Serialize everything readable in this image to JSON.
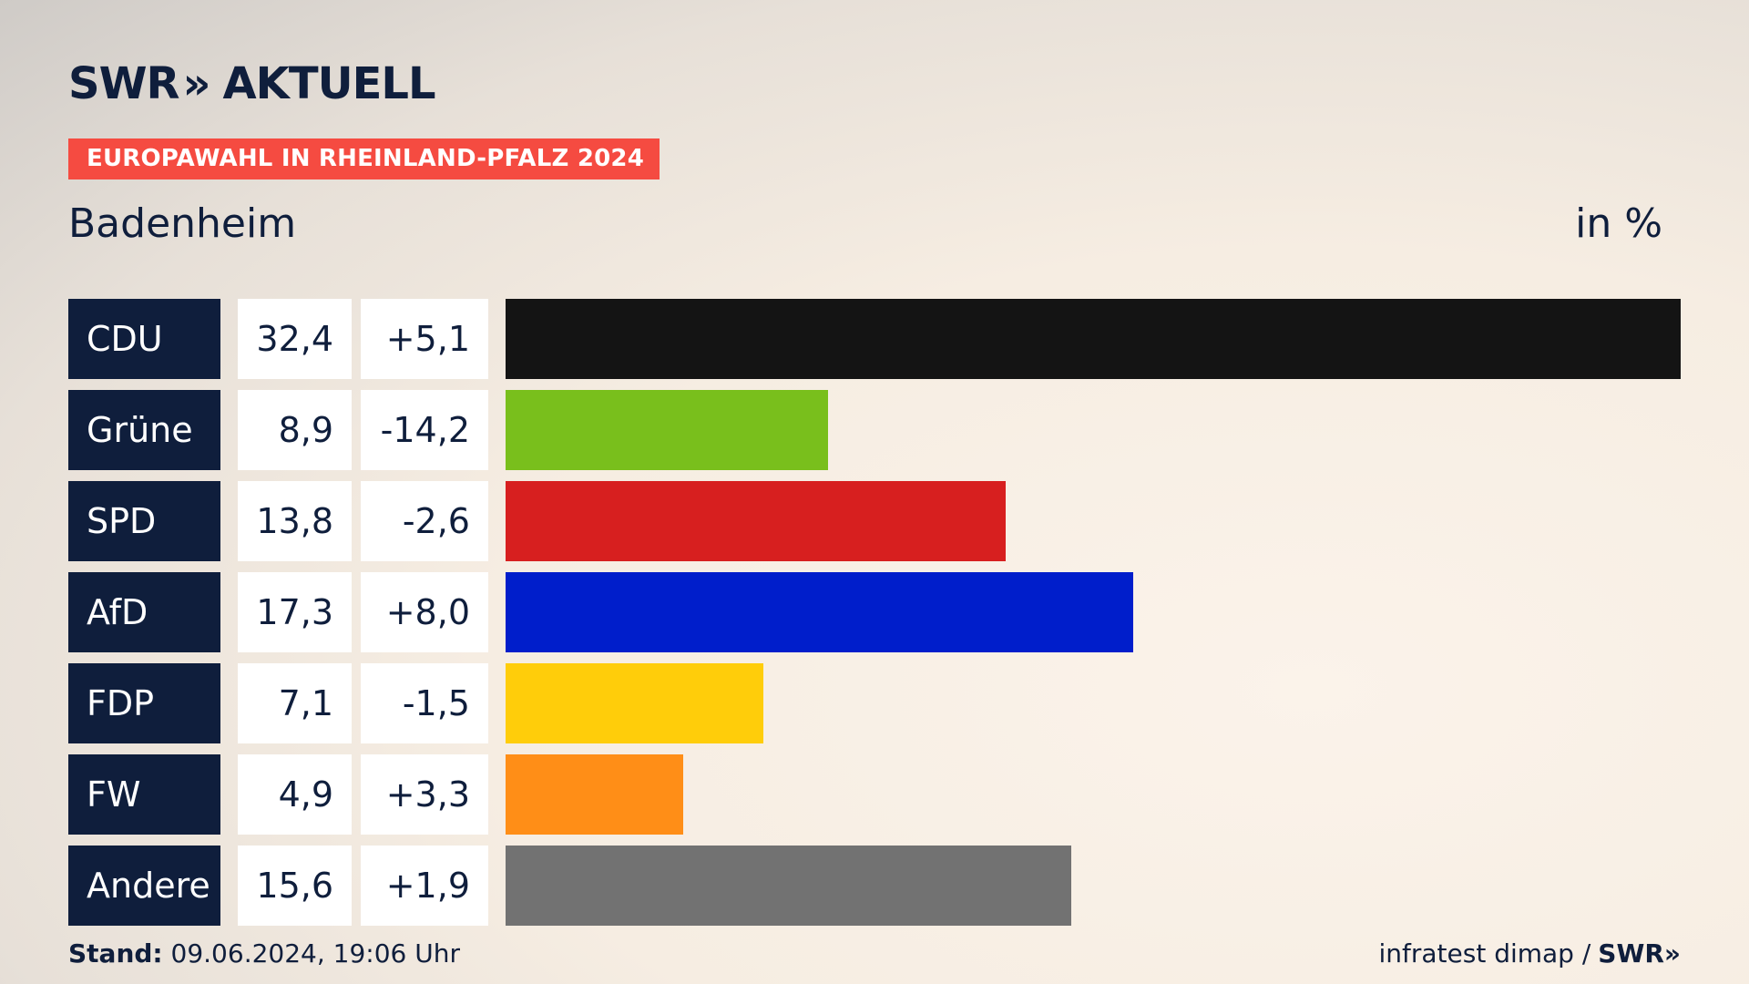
{
  "brand": {
    "logo_text": "SWR",
    "logo_chevrons": "»",
    "logo_suffix": "AKTUELL"
  },
  "event_banner": "EUROPAWAHL IN RHEINLAND-PFALZ 2024",
  "region": "Badenheim",
  "unit_label": "in %",
  "colors": {
    "navy": "#0f1e3c",
    "banner_red": "#f54b41"
  },
  "chart_data": {
    "type": "bar",
    "orientation": "horizontal",
    "categories": [
      "CDU",
      "Grüne",
      "SPD",
      "AfD",
      "FDP",
      "FW",
      "Andere"
    ],
    "values": [
      32.4,
      8.9,
      13.8,
      17.3,
      7.1,
      4.9,
      15.6
    ],
    "value_labels": [
      "32,4",
      "8,9",
      "13,8",
      "17,3",
      "7,1",
      "4,9",
      "15,6"
    ],
    "changes": [
      5.1,
      -14.2,
      -2.6,
      8.0,
      -1.5,
      3.3,
      1.9
    ],
    "change_labels": [
      "+5,1",
      "-14,2",
      "-2,6",
      "+8,0",
      "-1,5",
      "+3,3",
      "+1,9"
    ],
    "colors": [
      "#141414",
      "#79bf1c",
      "#d71f1f",
      "#001ecb",
      "#ffcd0a",
      "#ff8e17",
      "#727272"
    ],
    "xlim": [
      0,
      32.4
    ],
    "grid": false,
    "legend": "none"
  },
  "footer": {
    "stand_label": "Stand:",
    "stand_value": "09.06.2024, 19:06 Uhr",
    "source": "infratest dimap /",
    "source_brand": "SWR»"
  }
}
